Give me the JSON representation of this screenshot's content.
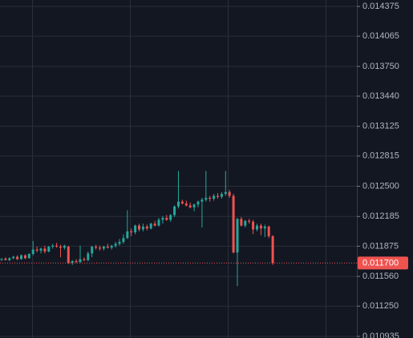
{
  "chart_data": {
    "type": "candlestick",
    "up_color": "#26a69a",
    "down_color": "#ef5350",
    "grid": true,
    "ylim": [
      0.010918,
      0.014442
    ],
    "yticks": [
      0.014375,
      0.014065,
      {
        "value": 0.01375,
        "label": "0.013750"
      },
      {
        "value": 0.01344,
        "label": "0.013440"
      },
      0.013125,
      0.012815,
      {
        "value": 0.0125,
        "label": "0.012500"
      },
      0.012185,
      0.011875,
      {
        "value": 0.01156,
        "label": "0.011560"
      },
      {
        "value": 0.01125,
        "label": "0.011250"
      },
      0.010935
    ],
    "last_price": {
      "value": 0.0117,
      "label": "0.011700"
    },
    "open": [
      0.011735,
      0.011745,
      0.01173,
      0.01175,
      0.011765,
      0.01174,
      0.01178,
      0.01175,
      0.011795,
      0.01184,
      0.01183,
      0.01185,
      0.01182,
      0.01187,
      0.01188,
      0.01187,
      0.01186,
      0.01187,
      0.0117,
      0.01172,
      0.01171,
      0.01174,
      0.01173,
      0.0118,
      0.01187,
      0.01186,
      0.01185,
      0.01187,
      0.01186,
      0.01188,
      0.0119,
      0.01192,
      0.01196,
      0.01203,
      0.01202,
      0.01209,
      0.01205,
      0.01208,
      0.01206,
      0.01211,
      0.01209,
      0.01215,
      0.01217,
      0.01215,
      0.0122,
      0.01229,
      0.01234,
      0.01232,
      0.0123,
      0.01228,
      0.01231,
      0.01234,
      0.01236,
      0.01238,
      0.01237,
      0.0124,
      0.01239,
      0.01242,
      0.01244,
      0.0124,
      0.01181,
      0.01216,
      0.01209,
      0.01214,
      0.01213,
      0.01205,
      0.01209,
      0.01206,
      0.01208,
      0.01198
    ],
    "high": [
      0.01175,
      0.01176,
      0.01176,
      0.011775,
      0.01178,
      0.01179,
      0.01179,
      0.0118,
      0.01193,
      0.01187,
      0.01186,
      0.01188,
      0.01188,
      0.0119,
      0.01191,
      0.01189,
      0.01189,
      0.01188,
      0.01173,
      0.01174,
      0.01188,
      0.01176,
      0.01182,
      0.01188,
      0.01189,
      0.01188,
      0.01188,
      0.0119,
      0.01189,
      0.01192,
      0.01195,
      0.012,
      0.01225,
      0.01206,
      0.0121,
      0.01211,
      0.01211,
      0.0121,
      0.01212,
      0.01214,
      0.01217,
      0.01219,
      0.0122,
      0.01221,
      0.0123,
      0.01266,
      0.01236,
      0.01235,
      0.01233,
      0.01232,
      0.01235,
      0.01238,
      0.01266,
      0.0124,
      0.01242,
      0.01243,
      0.01244,
      0.01266,
      0.01246,
      0.01242,
      0.01217,
      0.01218,
      0.01215,
      0.01216,
      0.01215,
      0.01211,
      0.01211,
      0.0121,
      0.01209,
      0.01199
    ],
    "low": [
      0.01172,
      0.01173,
      0.01172,
      0.01174,
      0.01173,
      0.011735,
      0.01174,
      0.011745,
      0.01178,
      0.01181,
      0.0118,
      0.0118,
      0.01181,
      0.01185,
      0.01186,
      0.01176,
      0.01184,
      0.01169,
      0.01168,
      0.0117,
      0.0117,
      0.01172,
      0.01172,
      0.01176,
      0.01184,
      0.01183,
      0.01183,
      0.01185,
      0.01184,
      0.01186,
      0.01188,
      0.0119,
      0.01195,
      0.01198,
      0.012,
      0.01203,
      0.01203,
      0.01204,
      0.01205,
      0.01208,
      0.01208,
      0.01211,
      0.01214,
      0.01213,
      0.01218,
      0.01227,
      0.01231,
      0.01229,
      0.01227,
      0.01224,
      0.01228,
      0.01207,
      0.01234,
      0.01234,
      0.01235,
      0.01237,
      0.01237,
      0.0124,
      0.01238,
      0.0118,
      0.01146,
      0.01208,
      0.01207,
      0.01211,
      0.012,
      0.01203,
      0.01199,
      0.01197,
      0.01196,
      0.01168
    ],
    "close": [
      0.011745,
      0.01173,
      0.01175,
      0.011765,
      0.01174,
      0.01178,
      0.01175,
      0.011795,
      0.01184,
      0.01183,
      0.01185,
      0.01182,
      0.01187,
      0.01188,
      0.01187,
      0.01186,
      0.01188,
      0.0117,
      0.01172,
      0.01171,
      0.01174,
      0.01173,
      0.0118,
      0.01187,
      0.01186,
      0.01185,
      0.01187,
      0.01186,
      0.01188,
      0.0119,
      0.01192,
      0.01196,
      0.01203,
      0.01202,
      0.01209,
      0.01205,
      0.01208,
      0.01206,
      0.01211,
      0.01209,
      0.01215,
      0.01217,
      0.01215,
      0.0122,
      0.01229,
      0.01234,
      0.01232,
      0.0123,
      0.01228,
      0.01231,
      0.01234,
      0.01236,
      0.01238,
      0.01237,
      0.0124,
      0.01239,
      0.01242,
      0.01244,
      0.0124,
      0.01181,
      0.01216,
      0.01209,
      0.01214,
      0.01213,
      0.01205,
      0.01209,
      0.01206,
      0.01208,
      0.01198,
      0.0117
    ]
  }
}
